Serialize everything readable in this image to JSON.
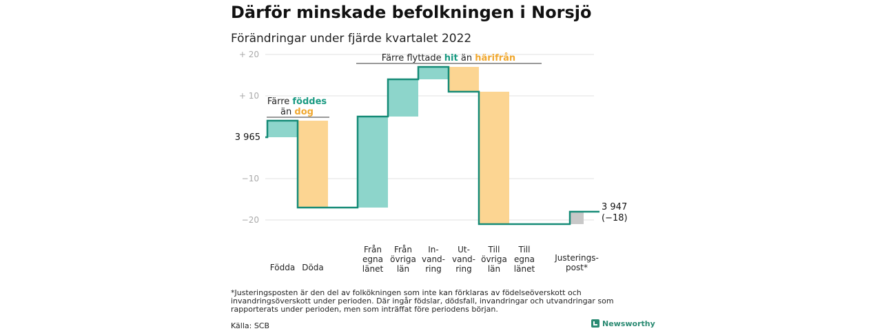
{
  "title": "Därför minskade befolkningen i Norsjö",
  "subtitle": "Förändringar under fjärde kvartalet 2022",
  "chart_data": {
    "type": "waterfall",
    "start_value": 3965,
    "start_label": "3 965",
    "end_value": 3947,
    "end_label": "3 947",
    "end_change_label": "(−18)",
    "ylim": [
      -22,
      21
    ],
    "yticks": [
      {
        "value": 20,
        "label": "+ 20"
      },
      {
        "value": 10,
        "label": "+ 10"
      },
      {
        "value": -10,
        "label": "−10"
      },
      {
        "value": -20,
        "label": "−20"
      }
    ],
    "steps": [
      {
        "label": [
          "Födda"
        ],
        "value": 4,
        "kind": "inflow"
      },
      {
        "label": [
          "Döda"
        ],
        "value": -21,
        "kind": "outflow"
      },
      {
        "label": [
          "Från",
          "egna",
          "länet"
        ],
        "value": 22,
        "kind": "inflow"
      },
      {
        "label": [
          "Från",
          "övriga",
          "län"
        ],
        "value": 9,
        "kind": "inflow"
      },
      {
        "label": [
          "In-",
          "vand-",
          "ring"
        ],
        "value": 3,
        "kind": "inflow"
      },
      {
        "label": [
          "Ut-",
          "vand-",
          "ring"
        ],
        "value": -6,
        "kind": "outflow"
      },
      {
        "label": [
          "Till",
          "övriga",
          "län"
        ],
        "value": -32,
        "kind": "outflow"
      },
      {
        "label": [
          "Till",
          "egna",
          "länet"
        ],
        "value": 0,
        "kind": "outflow"
      },
      {
        "label": [
          "Justerings-",
          "post*"
        ],
        "value": 3,
        "kind": "adjustment"
      }
    ],
    "annotations": [
      {
        "line1_parts": [
          {
            "text": "Färre ",
            "kind": "plain"
          },
          {
            "text": "föddes",
            "kind": "inflow"
          }
        ],
        "line2_parts": [
          {
            "text": "än ",
            "kind": "plain"
          },
          {
            "text": "dog",
            "kind": "outflow"
          }
        ]
      },
      {
        "line1_parts": [
          {
            "text": "Färre flyttade ",
            "kind": "plain"
          },
          {
            "text": "hit",
            "kind": "inflow"
          },
          {
            "text": " än ",
            "kind": "plain"
          },
          {
            "text": "härifrån",
            "kind": "outflow"
          }
        ]
      }
    ],
    "colors": {
      "inflow": "#8dd5cb",
      "outflow": "#fcd592",
      "adjustment": "#c8c8c8",
      "line": "#148a76",
      "inflow_text": "#1a9a82",
      "outflow_text": "#f0a830"
    },
    "grid": true
  },
  "footnote": "*Justeringsposten är den del av folkökningen som inte kan förklaras av födelseöverskott och invandringsöverskott under perioden. Där ingår födslar, dödsfall, invandringar och utvandringar som rapporterats under perioden, men som inträffat före periodens början.",
  "source": "Källa: SCB",
  "brand": "Newsworthy"
}
